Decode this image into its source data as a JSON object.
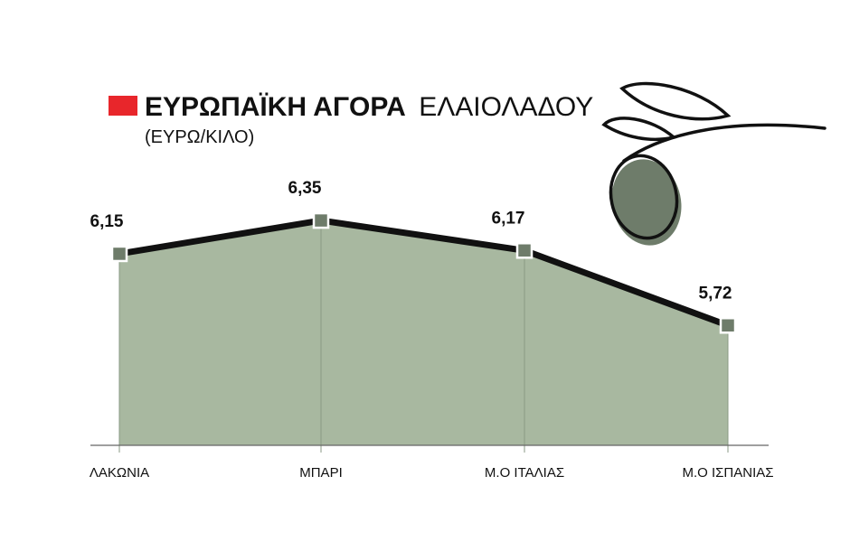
{
  "title": {
    "bold": "ΕΥΡΩΠΑΪΚΗ ΑΓΟΡΑ",
    "light": "ΕΛΑΙΟΛΑΔΟΥ",
    "unit": "(ΕΥΡΩ/ΚΙΛΟ)"
  },
  "colors": {
    "title_marker": "#e8262b",
    "area_fill": "#a8b8a0",
    "line": "#111111",
    "marker_fill": "#6e7c6a",
    "olive_fill": "#6e7c6a",
    "axis": "#666666"
  },
  "decoration": {
    "icon": "olive-branch-icon"
  },
  "chart_data": {
    "type": "area",
    "categories": [
      "ΛΑΚΩΝΙΑ",
      "ΜΠΑΡΙ",
      "Μ.Ο ΙΤΑΛΙΑΣ",
      "Μ.Ο ΙΣΠΑΝΙΑΣ"
    ],
    "values": [
      6.15,
      6.35,
      6.17,
      5.72
    ],
    "value_labels": [
      "6,15",
      "6,35",
      "6,17",
      "5,72"
    ],
    "ylim": [
      5.0,
      6.6
    ],
    "grid": false,
    "legend": "none",
    "xlabel": "",
    "ylabel": ""
  }
}
